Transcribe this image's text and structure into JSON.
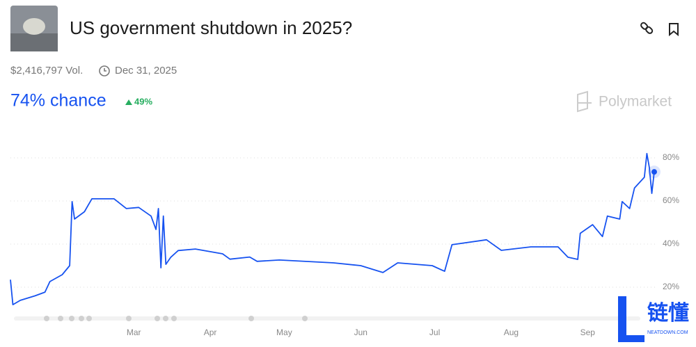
{
  "header": {
    "title": "US government shutdown in 2025?",
    "volume": "$2,416,797 Vol.",
    "end_date": "Dec 31, 2025",
    "chance": "74% chance",
    "change": "49%",
    "brand": "Polymarket"
  },
  "watermark": {
    "text": "链懂",
    "sub": "NEATDOWN.COM"
  },
  "chart_data": {
    "type": "line",
    "color": "#1652f0",
    "grid": true,
    "x": [
      10,
      11,
      14,
      20,
      24,
      26,
      31,
      34,
      35,
      36,
      40,
      43,
      52,
      57,
      62,
      67,
      69,
      70,
      71,
      72,
      73,
      75,
      78,
      85,
      96,
      99,
      107,
      110,
      119,
      141,
      152,
      161,
      167,
      181,
      186,
      189,
      203,
      209,
      221,
      232,
      236,
      240,
      241,
      246,
      250,
      252,
      257,
      258,
      261,
      263,
      267,
      268,
      269,
      270,
      271
    ],
    "values": [
      23.5,
      11.9,
      13.9,
      16,
      17.7,
      22.6,
      25.8,
      30,
      59.7,
      51.6,
      55,
      61,
      61,
      56.5,
      57,
      53,
      46.8,
      56.5,
      29,
      53,
      30.6,
      33.9,
      37,
      37.7,
      35.5,
      33,
      34,
      32,
      32.6,
      31.3,
      30,
      26.8,
      31.3,
      30,
      27.4,
      39.7,
      42,
      37.1,
      38.7,
      38.7,
      33.9,
      32.9,
      45,
      49,
      43.5,
      53,
      51.6,
      59.7,
      56.5,
      66,
      71,
      82,
      75.6,
      63.5,
      73.5
    ],
    "xlim": [
      10,
      271
    ],
    "xticks": [
      {
        "value": 60,
        "label": "Mar"
      },
      {
        "value": 91,
        "label": "Apr"
      },
      {
        "value": 121,
        "label": "May"
      },
      {
        "value": 152,
        "label": "Jun"
      },
      {
        "value": 182,
        "label": "Jul"
      },
      {
        "value": 213,
        "label": "Aug"
      },
      {
        "value": 244,
        "label": "Sep"
      }
    ],
    "ylim": [
      4,
      90
    ],
    "yticks": [
      {
        "value": 20,
        "label": "20%"
      },
      {
        "value": 40,
        "label": "40%"
      },
      {
        "value": 60,
        "label": "60%"
      },
      {
        "value": 80,
        "label": "80%"
      }
    ]
  }
}
